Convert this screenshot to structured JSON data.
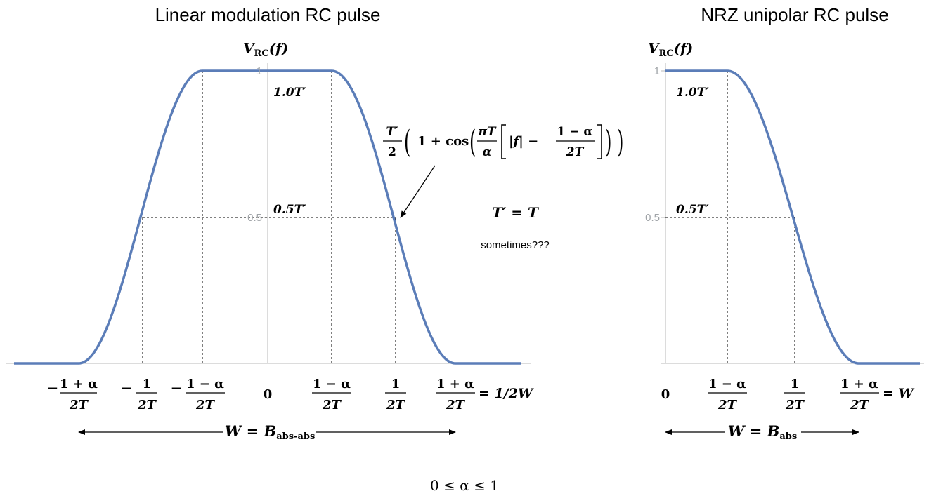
{
  "chart_data": [
    {
      "type": "line",
      "title": "Linear modulation RC pulse",
      "ylabel": "V_RC(f)",
      "yticks": [
        "0.5",
        "1"
      ],
      "x_tick_labels": [
        "−(1+α)/2T",
        "−1/2T",
        "−(1−α)/2T",
        "0",
        "(1−α)/2T",
        "1/2T",
        "(1+α)/2T = 1/2W"
      ],
      "ylim": [
        0,
        1
      ],
      "annotations": [
        "1.0T′",
        "0.5T′",
        "T′/2 (1 + cos (πT/α [|f| − (1−α)/2T]))",
        "T′ = T",
        "sometimes???"
      ],
      "bandwidth": "W = B_abs-abs",
      "points": [
        [
          "−(1+α)/2T",
          0
        ],
        [
          "−1/2T",
          0.5
        ],
        [
          "−(1−α)/2T",
          1.0
        ],
        [
          "(1−α)/2T",
          1.0
        ],
        [
          "1/2T",
          0.5
        ],
        [
          "(1+α)/2T",
          0
        ]
      ]
    },
    {
      "type": "line",
      "title": "NRZ unipolar RC pulse",
      "ylabel": "V_RC(f)",
      "yticks": [
        "0.5",
        "1"
      ],
      "x_tick_labels": [
        "0",
        "(1−α)/2T",
        "1/2T",
        "(1+α)/2T = W"
      ],
      "ylim": [
        0,
        1
      ],
      "annotations": [
        "1.0T′",
        "0.5T′"
      ],
      "bandwidth": "W = B_abs",
      "points": [
        [
          0,
          1.0
        ],
        [
          "(1−α)/2T",
          1.0
        ],
        [
          "1/2T",
          0.5
        ],
        [
          "(1+α)/2T",
          0
        ]
      ]
    }
  ],
  "titles": {
    "left": "Linear modulation RC pulse",
    "right": "NRZ unipolar RC pulse"
  },
  "labels": {
    "ylabel_V": "V",
    "ylabel_sub": "RC",
    "ylabel_arg": "(f)",
    "ytick_half": "0.5",
    "ytick_one": "1",
    "ann_full": "1.0T′",
    "ann_half": "0.5T′",
    "tprime_eq": "T′ = T",
    "sometimes": "sometimes???",
    "zero": "0",
    "one": "1",
    "one_plus_alpha": "1 + α",
    "one_minus_alpha": "1 − α",
    "two_t": "2T",
    "minus": "−",
    "eq_left": "= 1/2W",
    "eq_right": "= W",
    "bw_left_main": "W = B",
    "bw_left_sub": "abs-abs",
    "bw_right_main": "W = B",
    "bw_right_sub": "abs",
    "alpha_range": "0 ≤ α ≤ 1",
    "formula_tprime": "T′",
    "formula_two": "2",
    "formula_one_plus_cos": "1 + cos",
    "formula_pit": "πT",
    "formula_alpha": "α",
    "formula_absf": "|f| −",
    "formula_frac_num": "1 − α",
    "formula_frac_den": "2T"
  },
  "colors": {
    "curve": "#5b7db8",
    "axis": "#b8b8b8",
    "tick_label": "#a0a4a8",
    "ink": "#000000"
  }
}
